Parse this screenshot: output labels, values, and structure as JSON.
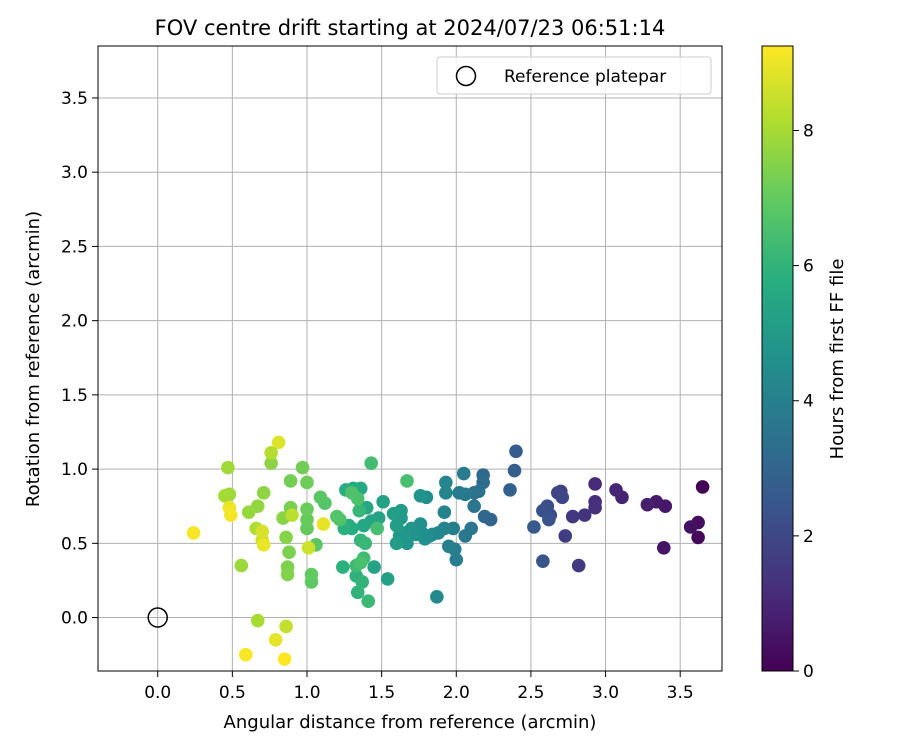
{
  "chart_data": {
    "type": "scatter",
    "title": "FOV centre drift starting at 2024/07/23 06:51:14",
    "xlabel": "Angular distance from reference (arcmin)",
    "ylabel": "Rotation from reference (arcmin)",
    "xlim": [
      -0.4,
      3.78
    ],
    "ylim": [
      -0.36,
      3.85
    ],
    "x_ticks": [
      0.0,
      0.5,
      1.0,
      1.5,
      2.0,
      2.5,
      3.0,
      3.5
    ],
    "x_tick_labels": [
      "0.0",
      "0.5",
      "1.0",
      "1.5",
      "2.0",
      "2.5",
      "3.0",
      "3.5"
    ],
    "y_ticks": [
      0.0,
      0.5,
      1.0,
      1.5,
      2.0,
      2.5,
      3.0,
      3.5
    ],
    "y_tick_labels": [
      "0.0",
      "0.5",
      "1.0",
      "1.5",
      "2.0",
      "2.5",
      "3.0",
      "3.5"
    ],
    "grid": true,
    "legend_position": "top-right",
    "reference": {
      "name": "Reference platepar",
      "x": 0.0,
      "y": 0.0
    },
    "colorbar": {
      "label": "Hours from first FF file",
      "colormap": "viridis",
      "min": 0,
      "max": 9.25,
      "ticks": [
        0,
        2,
        4,
        6,
        8
      ],
      "tick_labels": [
        "0",
        "2",
        "4",
        "6",
        "8"
      ]
    },
    "points": [
      {
        "x": 3.65,
        "y": 0.88,
        "h": 0.1
      },
      {
        "x": 3.62,
        "y": 0.54,
        "h": 0.2
      },
      {
        "x": 3.62,
        "y": 0.64,
        "h": 0.3
      },
      {
        "x": 3.57,
        "y": 0.61,
        "h": 0.4
      },
      {
        "x": 3.39,
        "y": 0.47,
        "h": 0.5
      },
      {
        "x": 3.4,
        "y": 0.75,
        "h": 0.6
      },
      {
        "x": 3.34,
        "y": 0.78,
        "h": 0.7
      },
      {
        "x": 3.28,
        "y": 0.76,
        "h": 0.8
      },
      {
        "x": 3.11,
        "y": 0.81,
        "h": 0.9
      },
      {
        "x": 3.07,
        "y": 0.86,
        "h": 1.0
      },
      {
        "x": 2.93,
        "y": 0.9,
        "h": 1.1
      },
      {
        "x": 2.93,
        "y": 0.78,
        "h": 1.2
      },
      {
        "x": 2.93,
        "y": 0.74,
        "h": 1.3
      },
      {
        "x": 2.86,
        "y": 0.69,
        "h": 1.4
      },
      {
        "x": 2.78,
        "y": 0.68,
        "h": 1.5
      },
      {
        "x": 2.82,
        "y": 0.35,
        "h": 1.6
      },
      {
        "x": 2.73,
        "y": 0.55,
        "h": 1.7
      },
      {
        "x": 2.7,
        "y": 0.85,
        "h": 1.8
      },
      {
        "x": 2.68,
        "y": 0.84,
        "h": 1.9
      },
      {
        "x": 2.71,
        "y": 0.81,
        "h": 2.0
      },
      {
        "x": 2.63,
        "y": 0.69,
        "h": 2.1
      },
      {
        "x": 2.61,
        "y": 0.75,
        "h": 2.2
      },
      {
        "x": 2.58,
        "y": 0.72,
        "h": 2.3
      },
      {
        "x": 2.62,
        "y": 0.66,
        "h": 2.4
      },
      {
        "x": 2.58,
        "y": 0.38,
        "h": 2.5
      },
      {
        "x": 2.52,
        "y": 0.61,
        "h": 2.6
      },
      {
        "x": 2.4,
        "y": 1.12,
        "h": 2.7
      },
      {
        "x": 2.39,
        "y": 0.99,
        "h": 2.8
      },
      {
        "x": 2.36,
        "y": 0.86,
        "h": 2.9
      },
      {
        "x": 2.23,
        "y": 0.66,
        "h": 3.0
      },
      {
        "x": 2.19,
        "y": 0.68,
        "h": 3.1
      },
      {
        "x": 2.18,
        "y": 0.96,
        "h": 3.2
      },
      {
        "x": 2.18,
        "y": 0.91,
        "h": 3.3
      },
      {
        "x": 2.15,
        "y": 0.85,
        "h": 3.4
      },
      {
        "x": 2.12,
        "y": 0.84,
        "h": 3.5
      },
      {
        "x": 2.12,
        "y": 0.75,
        "h": 3.6
      },
      {
        "x": 2.1,
        "y": 0.6,
        "h": 3.65
      },
      {
        "x": 2.06,
        "y": 0.55,
        "h": 3.7
      },
      {
        "x": 2.06,
        "y": 0.83,
        "h": 3.75
      },
      {
        "x": 2.05,
        "y": 0.97,
        "h": 3.8
      },
      {
        "x": 2.02,
        "y": 0.84,
        "h": 3.85
      },
      {
        "x": 2.0,
        "y": 0.39,
        "h": 3.9
      },
      {
        "x": 1.99,
        "y": 0.46,
        "h": 3.95
      },
      {
        "x": 1.98,
        "y": 0.6,
        "h": 4.0
      },
      {
        "x": 1.95,
        "y": 0.48,
        "h": 4.05
      },
      {
        "x": 1.92,
        "y": 0.6,
        "h": 4.1
      },
      {
        "x": 1.92,
        "y": 0.71,
        "h": 4.15
      },
      {
        "x": 1.93,
        "y": 0.84,
        "h": 4.2
      },
      {
        "x": 1.93,
        "y": 0.91,
        "h": 4.25
      },
      {
        "x": 1.88,
        "y": 0.57,
        "h": 4.3
      },
      {
        "x": 1.87,
        "y": 0.14,
        "h": 4.35
      },
      {
        "x": 1.84,
        "y": 0.56,
        "h": 4.4
      },
      {
        "x": 1.82,
        "y": 0.55,
        "h": 4.45
      },
      {
        "x": 1.8,
        "y": 0.81,
        "h": 4.5
      },
      {
        "x": 1.79,
        "y": 0.53,
        "h": 4.55
      },
      {
        "x": 1.77,
        "y": 0.57,
        "h": 4.6
      },
      {
        "x": 1.76,
        "y": 0.63,
        "h": 4.65
      },
      {
        "x": 1.76,
        "y": 0.82,
        "h": 4.7
      },
      {
        "x": 1.73,
        "y": 0.56,
        "h": 4.75
      },
      {
        "x": 1.7,
        "y": 0.6,
        "h": 4.8
      },
      {
        "x": 1.67,
        "y": 0.5,
        "h": 4.85
      },
      {
        "x": 1.65,
        "y": 0.57,
        "h": 4.9
      },
      {
        "x": 1.62,
        "y": 0.55,
        "h": 4.95
      },
      {
        "x": 1.63,
        "y": 0.67,
        "h": 5.0
      },
      {
        "x": 1.63,
        "y": 0.72,
        "h": 5.05
      },
      {
        "x": 1.6,
        "y": 0.62,
        "h": 5.1
      },
      {
        "x": 1.6,
        "y": 0.5,
        "h": 5.15
      },
      {
        "x": 1.58,
        "y": 0.7,
        "h": 5.2
      },
      {
        "x": 1.54,
        "y": 0.26,
        "h": 5.25
      },
      {
        "x": 1.51,
        "y": 0.78,
        "h": 5.3
      },
      {
        "x": 1.48,
        "y": 0.67,
        "h": 5.35
      },
      {
        "x": 1.45,
        "y": 0.34,
        "h": 5.4
      },
      {
        "x": 1.43,
        "y": 0.65,
        "h": 5.45
      },
      {
        "x": 1.4,
        "y": 0.74,
        "h": 5.5
      },
      {
        "x": 1.38,
        "y": 0.62,
        "h": 5.55
      },
      {
        "x": 1.36,
        "y": 0.87,
        "h": 5.6
      },
      {
        "x": 1.31,
        "y": 0.87,
        "h": 5.65
      },
      {
        "x": 1.3,
        "y": 0.6,
        "h": 5.7
      },
      {
        "x": 1.28,
        "y": 0.62,
        "h": 5.75
      },
      {
        "x": 1.26,
        "y": 0.86,
        "h": 5.8
      },
      {
        "x": 1.25,
        "y": 0.6,
        "h": 5.85
      },
      {
        "x": 1.24,
        "y": 0.34,
        "h": 5.9
      },
      {
        "x": 1.33,
        "y": 0.28,
        "h": 5.95
      },
      {
        "x": 1.34,
        "y": 0.17,
        "h": 6.0
      },
      {
        "x": 1.37,
        "y": 0.24,
        "h": 6.05
      },
      {
        "x": 1.36,
        "y": 0.52,
        "h": 6.1
      },
      {
        "x": 1.35,
        "y": 0.72,
        "h": 6.15
      },
      {
        "x": 1.39,
        "y": 0.5,
        "h": 6.2
      },
      {
        "x": 1.41,
        "y": 0.11,
        "h": 6.25
      },
      {
        "x": 1.33,
        "y": 0.35,
        "h": 6.3
      },
      {
        "x": 1.38,
        "y": 0.4,
        "h": 6.35
      },
      {
        "x": 1.43,
        "y": 1.04,
        "h": 6.4
      },
      {
        "x": 1.47,
        "y": 0.6,
        "h": 6.45
      },
      {
        "x": 1.67,
        "y": 0.92,
        "h": 6.5
      },
      {
        "x": 1.36,
        "y": 0.37,
        "h": 6.55
      },
      {
        "x": 1.34,
        "y": 0.8,
        "h": 6.6
      },
      {
        "x": 1.3,
        "y": 0.84,
        "h": 6.65
      },
      {
        "x": 1.22,
        "y": 0.66,
        "h": 6.7
      },
      {
        "x": 1.2,
        "y": 0.68,
        "h": 6.75
      },
      {
        "x": 1.12,
        "y": 0.77,
        "h": 6.8
      },
      {
        "x": 1.09,
        "y": 0.81,
        "h": 6.85
      },
      {
        "x": 1.06,
        "y": 0.49,
        "h": 6.9
      },
      {
        "x": 1.03,
        "y": 0.24,
        "h": 6.95
      },
      {
        "x": 1.03,
        "y": 0.29,
        "h": 7.0
      },
      {
        "x": 1.0,
        "y": 0.6,
        "h": 7.05
      },
      {
        "x": 1.0,
        "y": 0.66,
        "h": 7.1
      },
      {
        "x": 1.0,
        "y": 0.73,
        "h": 7.15
      },
      {
        "x": 1.0,
        "y": 0.91,
        "h": 7.2
      },
      {
        "x": 0.97,
        "y": 1.01,
        "h": 7.25
      },
      {
        "x": 0.89,
        "y": 0.92,
        "h": 7.3
      },
      {
        "x": 0.89,
        "y": 0.74,
        "h": 7.35
      },
      {
        "x": 0.88,
        "y": 0.44,
        "h": 7.4
      },
      {
        "x": 0.87,
        "y": 0.34,
        "h": 7.45
      },
      {
        "x": 0.87,
        "y": 0.29,
        "h": 7.5
      },
      {
        "x": 0.86,
        "y": 0.54,
        "h": 7.55
      },
      {
        "x": 0.84,
        "y": 0.67,
        "h": 7.6
      },
      {
        "x": 0.76,
        "y": 1.04,
        "h": 7.65
      },
      {
        "x": 0.71,
        "y": 0.84,
        "h": 7.7
      },
      {
        "x": 0.67,
        "y": 0.75,
        "h": 7.75
      },
      {
        "x": 0.61,
        "y": 0.71,
        "h": 7.8
      },
      {
        "x": 0.56,
        "y": 0.35,
        "h": 7.85
      },
      {
        "x": 0.48,
        "y": 0.83,
        "h": 7.9
      },
      {
        "x": 0.47,
        "y": 1.01,
        "h": 7.95
      },
      {
        "x": 0.45,
        "y": 0.82,
        "h": 8.0
      },
      {
        "x": 0.67,
        "y": -0.02,
        "h": 8.05
      },
      {
        "x": 0.66,
        "y": 0.6,
        "h": 8.15
      },
      {
        "x": 0.76,
        "y": 1.11,
        "h": 8.25
      },
      {
        "x": 0.9,
        "y": 0.69,
        "h": 8.35
      },
      {
        "x": 0.86,
        "y": -0.06,
        "h": 8.45
      },
      {
        "x": 0.7,
        "y": 0.52,
        "h": 8.55
      },
      {
        "x": 1.01,
        "y": 0.47,
        "h": 8.6
      },
      {
        "x": 0.7,
        "y": 0.58,
        "h": 8.7
      },
      {
        "x": 0.81,
        "y": 1.18,
        "h": 8.8
      },
      {
        "x": 0.79,
        "y": -0.15,
        "h": 8.9
      },
      {
        "x": 1.11,
        "y": 0.63,
        "h": 8.95
      },
      {
        "x": 0.71,
        "y": 0.49,
        "h": 9.0
      },
      {
        "x": 0.48,
        "y": 0.74,
        "h": 9.05
      },
      {
        "x": 0.49,
        "y": 0.69,
        "h": 9.1
      },
      {
        "x": 0.24,
        "y": 0.57,
        "h": 9.15
      },
      {
        "x": 0.59,
        "y": -0.25,
        "h": 9.2
      },
      {
        "x": 0.85,
        "y": -0.28,
        "h": 9.25
      }
    ]
  }
}
